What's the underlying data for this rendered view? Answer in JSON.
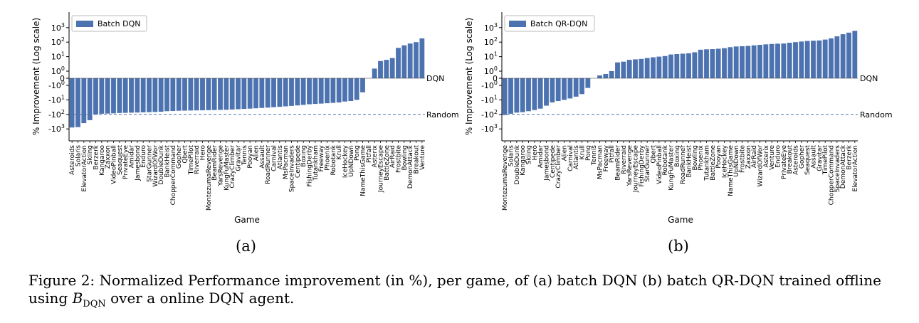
{
  "chart_data": [
    {
      "type": "bar",
      "panel_label": "(a)",
      "xlabel": "Game",
      "ylabel": "% Improvement (Log scale)",
      "yscale": "symlog",
      "legend": "Batch DQN",
      "legend_position": "top-left",
      "ytick_labels": [
        "10^3",
        "10^2",
        "10^1",
        "10^0",
        "0",
        "-10^0",
        "-10^1",
        "-10^2",
        "-10^3"
      ],
      "reference_lines": [
        {
          "label": "DQN",
          "value": 0
        },
        {
          "label": "Random",
          "value": -100
        }
      ],
      "categories": [
        "Asteroids",
        "Solaris",
        "ElevatorAction",
        "Skiing",
        "Berzerk",
        "Kangaroo",
        "Zaxxon",
        "VideoPinball",
        "Seaquest",
        "PrivateEye",
        "Amidar",
        "Jamesbond",
        "Enduro",
        "StarGunner",
        "WizardOfWor",
        "DoubleDunk",
        "BankHeist",
        "ChopperCommand",
        "Gopher",
        "Qbert",
        "TimePilot",
        "Riverraid",
        "Hero",
        "MontezumaRevenge",
        "BeamRider",
        "YarsRevenge",
        "KungFuMaster",
        "CrazyClimber",
        "Gravitar",
        "Tennis",
        "Pooyan",
        "Alien",
        "Assault",
        "RoadRunner",
        "Carnival",
        "Atlantis",
        "MsPacman",
        "SpaceInvaders",
        "Centipede",
        "Boxing",
        "FishingDerby",
        "Tutankham",
        "Freeway",
        "Phoenix",
        "Robotank",
        "Krull",
        "IceHockey",
        "UpNDown",
        "Pong",
        "NameThisGame",
        "Pitfall",
        "Asterix",
        "JourneyEscape",
        "BattleZone",
        "AirRaid",
        "Frostbite",
        "Bowling",
        "DemonAttack",
        "Breakout",
        "Venture"
      ],
      "values": [
        -800,
        -750,
        -400,
        -250,
        -100,
        -90,
        -88,
        -85,
        -80,
        -78,
        -76,
        -74,
        -72,
        -70,
        -68,
        -66,
        -60,
        -58,
        -56,
        -55,
        -54,
        -53,
        -52,
        -51,
        -50,
        -49,
        -48,
        -46,
        -44,
        -42,
        -40,
        -38,
        -36,
        -34,
        -32,
        -30,
        -28,
        -26,
        -24,
        -22,
        -20,
        -19,
        -18,
        -17,
        -16,
        -15,
        -13,
        -12,
        -10,
        -3,
        0,
        1.5,
        5,
        6,
        8,
        40,
        60,
        80,
        100,
        180
      ]
    },
    {
      "type": "bar",
      "panel_label": "(b)",
      "xlabel": "Game",
      "ylabel": "% Improvement (Log scale)",
      "yscale": "symlog",
      "legend": "Batch QR-DQN",
      "legend_position": "top-left",
      "ytick_labels": [
        "10^3",
        "10^2",
        "10^1",
        "10^0",
        "0",
        "-10^0",
        "-10^1",
        "-10^2",
        "-10^3"
      ],
      "reference_lines": [
        {
          "label": "DQN",
          "value": 0
        },
        {
          "label": "Random",
          "value": -100
        }
      ],
      "categories": [
        "MontezumaRevenge",
        "Solaris",
        "DoubleDunk",
        "Kangaroo",
        "Skiing",
        "Hero",
        "Amidar",
        "Jamesbond",
        "Centipede",
        "CrazyClimber",
        "Alien",
        "Carnival",
        "Atlantis",
        "Krull",
        "Pong",
        "Tennis",
        "MsPacman",
        "Freeway",
        "Pitfall",
        "BeamRider",
        "Riverraid",
        "YarsRevenge",
        "JourneyEscape",
        "FishingDerby",
        "StarGunner",
        "Qbert",
        "VideoPinball",
        "Robotank",
        "KungFuMaster",
        "Boxing",
        "RoadRunner",
        "BankHeist",
        "Bowling",
        "Phoenix",
        "Tutankham",
        "BattleZone",
        "Pooyan",
        "IceHockey",
        "NameThisGame",
        "UpNDown",
        "Frostbite",
        "Zaxxon",
        "AirRaid",
        "WizardOfWor",
        "Asterix",
        "Venture",
        "Enduro",
        "PrivateEye",
        "Breakout",
        "Asteroids",
        "Gopher",
        "Seaquest",
        "Assault",
        "Gravitar",
        "TimePilot",
        "ChopperCommand",
        "SpaceInvaders",
        "DemonAttack",
        "Berzerk",
        "ElevatorAction"
      ],
      "values": [
        -110,
        -90,
        -75,
        -70,
        -60,
        -50,
        -40,
        -25,
        -15,
        -12,
        -10,
        -8,
        -6,
        -4,
        -1.5,
        0,
        0.4,
        0.6,
        1,
        4,
        4.5,
        6,
        6.5,
        7,
        8,
        9,
        10,
        11,
        14,
        15,
        16,
        17,
        20,
        30,
        32,
        33,
        35,
        38,
        45,
        50,
        52,
        55,
        60,
        65,
        70,
        75,
        78,
        80,
        90,
        100,
        110,
        120,
        125,
        130,
        150,
        180,
        250,
        350,
        450,
        600
      ]
    }
  ],
  "sublabels": [
    "(a)",
    "(b)"
  ],
  "caption": {
    "prefix": "Figure 2: Normalized Performance improvement (in %), per game, of (a) batch DQN (b) batch QR-DQN trained offline using ",
    "symbol": "B",
    "subscript": "DQN",
    "suffix": " over a online DQN agent."
  }
}
